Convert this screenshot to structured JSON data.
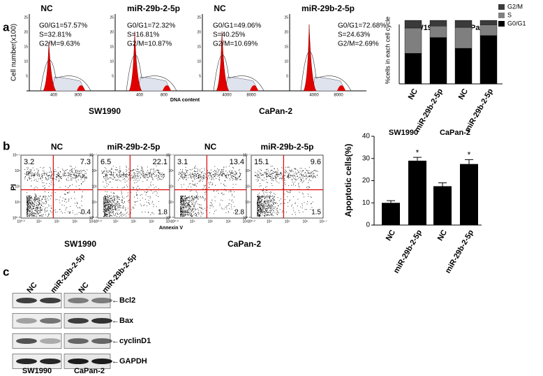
{
  "panel_letters": [
    "a",
    "b",
    "c"
  ],
  "histograms": {
    "y_label": "Cell number(x100)",
    "x_label": "DNA content",
    "groups": [
      "SW1990",
      "CaPan-2"
    ],
    "plots": [
      {
        "title": "NC",
        "stats": [
          "G0/G1=57.57%",
          "S=32.81%",
          "G2/M=9.63%"
        ],
        "yticks": [
          "5",
          "10",
          "15",
          "20",
          "25"
        ],
        "xticks": [
          "400",
          "800"
        ]
      },
      {
        "title": "miR-29b-2-5p",
        "stats": [
          "G0/G1=72.32%",
          "S=16.81%",
          "G2/M=10.87%"
        ],
        "yticks": [
          "5",
          "10",
          "15",
          "20",
          "25"
        ],
        "xticks": [
          "400",
          "800"
        ]
      },
      {
        "title": "NC",
        "stats": [
          "G0/G1=49.06%",
          "S=40.25%",
          "G2/M=10.69%"
        ],
        "yticks": [
          "5",
          "10",
          "15",
          "20",
          "25"
        ],
        "xticks": [
          "4000",
          "8000"
        ]
      },
      {
        "title": "miR-29b-2-5p",
        "stats": [
          "G0/G1=72.68%",
          "S=24.63%",
          "G2/M=2.69%"
        ],
        "yticks": [
          "5",
          "10",
          "15",
          "20",
          "25"
        ],
        "xticks": [
          "4000",
          "8000"
        ]
      }
    ]
  },
  "scatters": {
    "y_label": "PI",
    "x_label": "Annexin V",
    "groups": [
      "SW1990",
      "CaPan-2"
    ],
    "plots": [
      {
        "title": "NC",
        "upper_left": "3.2",
        "upper_right": "7.3",
        "lower_right": "0.4",
        "ticks": [
          "10⁰·⁰",
          "10⁴",
          "10⁵",
          "10⁶",
          "10⁶·⁷"
        ]
      },
      {
        "title": "miR-29b-2-5p",
        "upper_left": "6.5",
        "upper_right": "22.1",
        "lower_right": "1.8",
        "ticks": [
          "10⁰·⁰",
          "10⁴",
          "10⁵",
          "10⁶",
          "10⁶·⁷"
        ]
      },
      {
        "title": "NC",
        "upper_left": "3.1",
        "upper_right": "13.4",
        "lower_right": "2.8",
        "ticks": [
          "10⁰·⁰",
          "10⁴",
          "10⁵",
          "10⁶",
          "10⁶·⁷"
        ]
      },
      {
        "title": "miR-29b-2-5p",
        "upper_left": "15.1",
        "upper_right": "9.6",
        "lower_right": "1.5",
        "ticks": [
          "10⁰·⁰",
          "10⁴",
          "10⁵",
          "10⁶",
          "10⁶·⁷"
        ]
      }
    ]
  },
  "chart_data": [
    {
      "type": "stacked_bar",
      "y_label": "%cells in each cell cycle",
      "groups": [
        "SW1990",
        "CaPan-2"
      ],
      "categories": [
        "NC",
        "miR-29b-2-5p",
        "NC",
        "miR-29b-2-5p"
      ],
      "ylim": [
        0,
        110
      ],
      "legend": "top-right",
      "series": [
        {
          "name": "G0/G1",
          "color": "#000000",
          "values": [
            48,
            73,
            56,
            76
          ]
        },
        {
          "name": "S",
          "color": "#7f7f7f",
          "values": [
            40,
            18,
            33,
            17
          ]
        },
        {
          "name": "G2/M",
          "color": "#3a3a3a",
          "values": [
            12,
            9,
            11,
            7
          ]
        }
      ]
    },
    {
      "type": "bar",
      "y_label": "Apoptotic cells(%)",
      "groups": [
        "SW1990",
        "CaPan-2"
      ],
      "categories": [
        "NC",
        "miR-29b-2-5p",
        "NC",
        "miR-29b-2-5p"
      ],
      "values": [
        10,
        29,
        17.5,
        27.5
      ],
      "errors": [
        1,
        1.5,
        1.5,
        2
      ],
      "significance": [
        null,
        "*",
        null,
        "*"
      ],
      "color": "#000000",
      "ylim": [
        0,
        40
      ],
      "yticks": [
        0,
        10,
        20,
        30,
        40
      ]
    }
  ],
  "blot": {
    "lanes": [
      "NC",
      "miR-29b-2-5p",
      "NC",
      "miR-29b-2-5p"
    ],
    "proteins": [
      "←Bcl2",
      "←Bax",
      "←cyclinD1",
      "←GAPDH"
    ],
    "groups": [
      "SW1990",
      "CaPan-2"
    ]
  }
}
